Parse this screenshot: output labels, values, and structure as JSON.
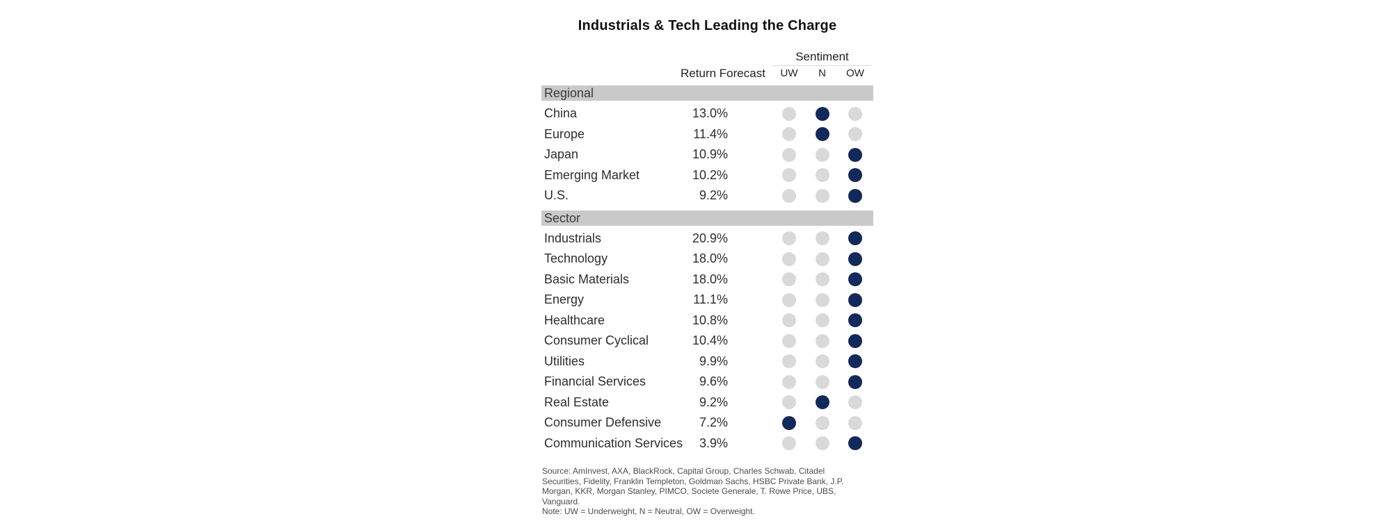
{
  "title": "Industrials & Tech Leading the Charge",
  "columns": {
    "return_forecast": "Return Forecast",
    "sentiment": "Sentiment",
    "sentiment_levels": [
      "UW",
      "N",
      "OW"
    ]
  },
  "chart_data": {
    "type": "table",
    "title": "Industrials & Tech Leading the Charge",
    "value_column": "Return Forecast",
    "sentiment_column": "Sentiment",
    "sentiment_levels": [
      "UW",
      "N",
      "OW"
    ],
    "groups": [
      {
        "label": "Regional",
        "rows": [
          {
            "name": "China",
            "return_forecast": "13.0%",
            "return_forecast_value": 13.0,
            "sentiment": "N"
          },
          {
            "name": "Europe",
            "return_forecast": "11.4%",
            "return_forecast_value": 11.4,
            "sentiment": "N"
          },
          {
            "name": "Japan",
            "return_forecast": "10.9%",
            "return_forecast_value": 10.9,
            "sentiment": "OW"
          },
          {
            "name": "Emerging Market",
            "return_forecast": "10.2%",
            "return_forecast_value": 10.2,
            "sentiment": "OW"
          },
          {
            "name": "U.S.",
            "return_forecast": "9.2%",
            "return_forecast_value": 9.2,
            "sentiment": "OW"
          }
        ]
      },
      {
        "label": "Sector",
        "rows": [
          {
            "name": "Industrials",
            "return_forecast": "20.9%",
            "return_forecast_value": 20.9,
            "sentiment": "OW"
          },
          {
            "name": "Technology",
            "return_forecast": "18.0%",
            "return_forecast_value": 18.0,
            "sentiment": "OW"
          },
          {
            "name": "Basic Materials",
            "return_forecast": "18.0%",
            "return_forecast_value": 18.0,
            "sentiment": "OW"
          },
          {
            "name": "Energy",
            "return_forecast": "11.1%",
            "return_forecast_value": 11.1,
            "sentiment": "OW"
          },
          {
            "name": "Healthcare",
            "return_forecast": "10.8%",
            "return_forecast_value": 10.8,
            "sentiment": "OW"
          },
          {
            "name": "Consumer Cyclical",
            "return_forecast": "10.4%",
            "return_forecast_value": 10.4,
            "sentiment": "OW"
          },
          {
            "name": "Utilities",
            "return_forecast": "9.9%",
            "return_forecast_value": 9.9,
            "sentiment": "OW"
          },
          {
            "name": "Financial Services",
            "return_forecast": "9.6%",
            "return_forecast_value": 9.6,
            "sentiment": "OW"
          },
          {
            "name": "Real Estate",
            "return_forecast": "9.2%",
            "return_forecast_value": 9.2,
            "sentiment": "N"
          },
          {
            "name": "Consumer Defensive",
            "return_forecast": "7.2%",
            "return_forecast_value": 7.2,
            "sentiment": "UW"
          },
          {
            "name": "Communication Services",
            "return_forecast": "3.9%",
            "return_forecast_value": 3.9,
            "sentiment": "OW"
          }
        ]
      }
    ]
  },
  "footer": {
    "source": "Source: AmInvest, AXA, BlackRock, Capital Group, Charles Schwab, Citadel Securities, Fidelity, Franklin Templeton, Goldman Sachs, HSBC Private Bank, J.P. Morgan, KKR, Morgan Stanley, PIMCO, Societe Generale, T. Rowe Price, UBS, Vanguard.",
    "note": "Note: UW = Underweight, N = Neutral, OW = Overweight."
  },
  "colors": {
    "selected_dot": "#12295c",
    "unselected_dot": "#d9d9d9",
    "band_background": "#c9c9c9"
  }
}
